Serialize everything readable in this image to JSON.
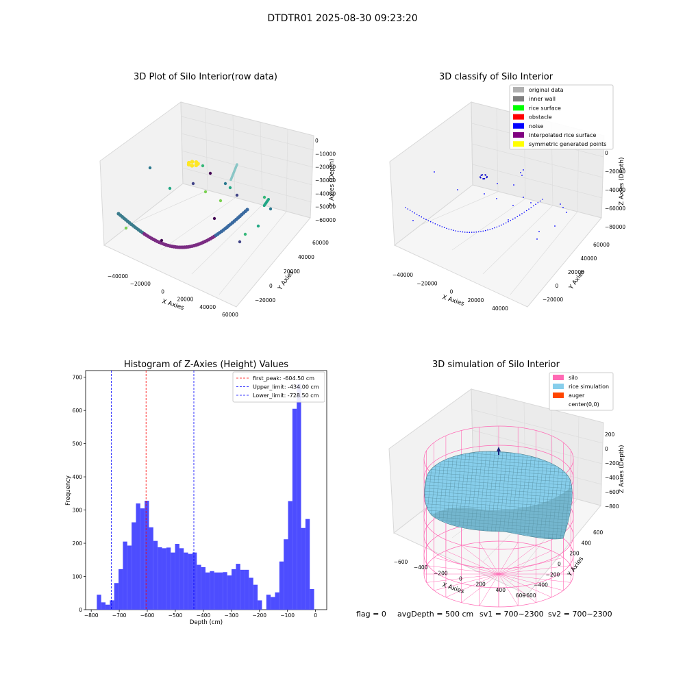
{
  "suptitle": "DTDTR01 2025-08-30 09:23:20",
  "footer": {
    "flag": "flag = 0",
    "avg": "avgDepth = 500 cm",
    "sv1": "sv1 = 700~2300",
    "sv2": "sv2 = 700~2300"
  },
  "colors": {
    "hist_bar": "#4d4dff",
    "peak_line": "#ff0000",
    "limit_line": "#0000ff",
    "silo": "#ff69b4",
    "rice": "#87ceeb",
    "auger": "#ff4500",
    "noise": "#0000ff",
    "trace": "#7b2c83"
  },
  "chart_data": [
    {
      "type": "scatter",
      "title": "3D Plot of Silo Interior(row data)",
      "xlabel": "X Axies",
      "ylabel": "Y Axies",
      "zlabel": "Z Axies (Depth)",
      "x_ticks": [
        "−40000",
        "−20000",
        "0",
        "20000",
        "40000",
        "60000"
      ],
      "y_ticks": [
        "−20000",
        "0",
        "20000",
        "40000",
        "60000"
      ],
      "z_ticks": [
        "0",
        "−10000",
        "−20000",
        "−30000",
        "−40000",
        "−50000",
        "−60000"
      ]
    },
    {
      "type": "scatter",
      "title": "3D classify of Silo Interior",
      "xlabel": "X Axies",
      "ylabel": "Y Axies",
      "zlabel": "Z Axies (Depth)",
      "x_ticks": [
        "−40000",
        "−20000",
        "0",
        "20000",
        "40000"
      ],
      "y_ticks": [
        "−20000",
        "0",
        "20000",
        "40000",
        "60000"
      ],
      "z_ticks": [
        "0",
        "−20000",
        "−40000",
        "−60000",
        "−80000"
      ],
      "legend": [
        {
          "name": "original data",
          "color": "#b0b0b0"
        },
        {
          "name": "inner wall",
          "color": "#808080"
        },
        {
          "name": "rice surface",
          "color": "#00ff00"
        },
        {
          "name": "obstacle",
          "color": "#ff0000"
        },
        {
          "name": "noise",
          "color": "#0000ff"
        },
        {
          "name": "interpolated rice surface",
          "color": "#800080"
        },
        {
          "name": "symmetric generated points",
          "color": "#ffff00"
        }
      ]
    },
    {
      "type": "bar",
      "title": "Histogram of Z-Axies (Height) Values",
      "xlabel": "Depth (cm)",
      "ylabel": "Frequency",
      "xlim": [
        -820,
        40
      ],
      "ylim": [
        0,
        720
      ],
      "x_ticks": [
        "−800",
        "−700",
        "−600",
        "−500",
        "−400",
        "−300",
        "−200",
        "−100",
        "0"
      ],
      "y_ticks": [
        "0",
        "100",
        "200",
        "300",
        "400",
        "500",
        "600",
        "700"
      ],
      "bin_start": -780,
      "bin_width": 15.5,
      "values": [
        45,
        22,
        15,
        28,
        80,
        122,
        205,
        193,
        263,
        320,
        305,
        328,
        248,
        207,
        188,
        185,
        187,
        172,
        198,
        185,
        172,
        168,
        172,
        135,
        128,
        112,
        116,
        112,
        112,
        113,
        103,
        122,
        138,
        120,
        120,
        96,
        75,
        28,
        0,
        45,
        38,
        52,
        145,
        212,
        327,
        605,
        680,
        246,
        273,
        62
      ],
      "lines": [
        {
          "name": "first_peak: -604.50 cm",
          "x": -604.5,
          "style": "peak"
        },
        {
          "name": "Upper_limit: -434.00 cm",
          "x": -434.0,
          "style": "limit"
        },
        {
          "name": "Lower_limit: -728.50 cm",
          "x": -728.5,
          "style": "limit"
        }
      ]
    },
    {
      "type": "scatter",
      "title": "3D simulation of Silo Interior",
      "xlabel": "X Axies",
      "ylabel": "Y Axies",
      "zlabel": "Z Axies (Depth)",
      "x_ticks": [
        "−600",
        "−400",
        "−200",
        "0",
        "200",
        "400",
        "600"
      ],
      "y_ticks": [
        "−600",
        "−400",
        "−200",
        "0",
        "200",
        "400",
        "600"
      ],
      "z_ticks": [
        "200",
        "0",
        "−200",
        "−400",
        "−600",
        "−800"
      ],
      "legend": [
        {
          "name": "silo",
          "color": "#ff69b4"
        },
        {
          "name": "rice simulation",
          "color": "#87ceeb"
        },
        {
          "name": "auger",
          "color": "#ff4500"
        },
        {
          "name": "center(0,0)",
          "color": ""
        }
      ]
    }
  ]
}
